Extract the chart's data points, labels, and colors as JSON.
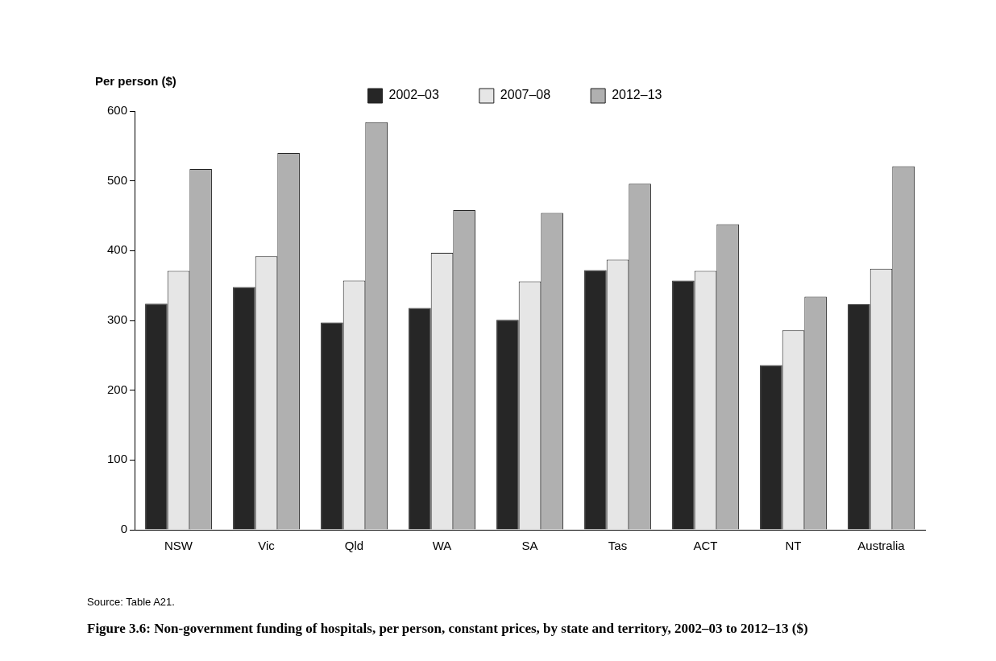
{
  "chart_data": {
    "type": "bar",
    "title": "Figure 3.6: Non-government funding of hospitals, per person, constant prices, by state and territory, 2002–03 to 2012–13 ($)",
    "ylabel": "Per person ($)",
    "annotations": [
      "Source: Table A21."
    ],
    "categories": [
      "NSW",
      "Vic",
      "Qld",
      "WA",
      "SA",
      "Tas",
      "ACT",
      "NT",
      "Australia"
    ],
    "series": [
      {
        "name": "2002–03",
        "color": "#262626",
        "values": [
          324,
          348,
          297,
          318,
          301,
          372,
          357,
          236,
          323
        ]
      },
      {
        "name": "2007–08",
        "color": "#e6e6e6",
        "values": [
          371,
          392,
          357,
          397,
          356,
          387,
          371,
          286,
          374
        ]
      },
      {
        "name": "2012–13",
        "color": "#b0b0b0",
        "values": [
          517,
          540,
          584,
          458,
          454,
          496,
          438,
          334,
          521
        ]
      }
    ],
    "ylim": [
      0,
      600
    ],
    "yticks": [
      0,
      100,
      200,
      300,
      400,
      500,
      600
    ],
    "grid": false,
    "legend": "top"
  }
}
